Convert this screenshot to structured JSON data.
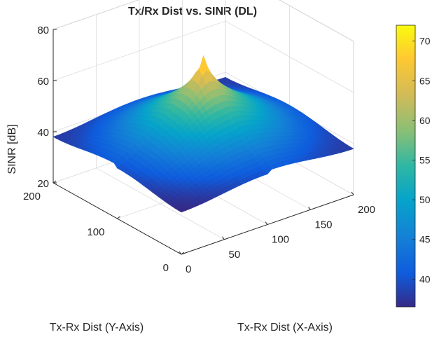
{
  "chart_data": {
    "type": "surface",
    "title": "Tx/Rx Dist vs. SINR (DL)",
    "xlabel": "Tx-Rx Dist (X-Axis)",
    "ylabel": "Tx-Rx Dist (Y-Axis)",
    "zlabel": "SINR [dB]",
    "xlim": [
      0,
      200
    ],
    "ylim": [
      0,
      200
    ],
    "zlim": [
      20,
      80
    ],
    "xticks": [
      "0",
      "50",
      "100",
      "150",
      "200"
    ],
    "yticks": [
      "0",
      "100",
      "200"
    ],
    "zticks": [
      "20",
      "40",
      "60",
      "80"
    ],
    "grid": true,
    "colormap": "parula",
    "colorbar": {
      "range": [
        36.5,
        72
      ],
      "ticks": [
        "40",
        "45",
        "50",
        "55",
        "60",
        "65",
        "70"
      ]
    },
    "peak": {
      "x": 100,
      "y": 100,
      "z": 72
    },
    "corner_values": {
      "x0_y0": 36.5,
      "x200_y0": 38,
      "x0_y200": 38,
      "x200_y200": 38
    },
    "center_base_value": 63
  }
}
